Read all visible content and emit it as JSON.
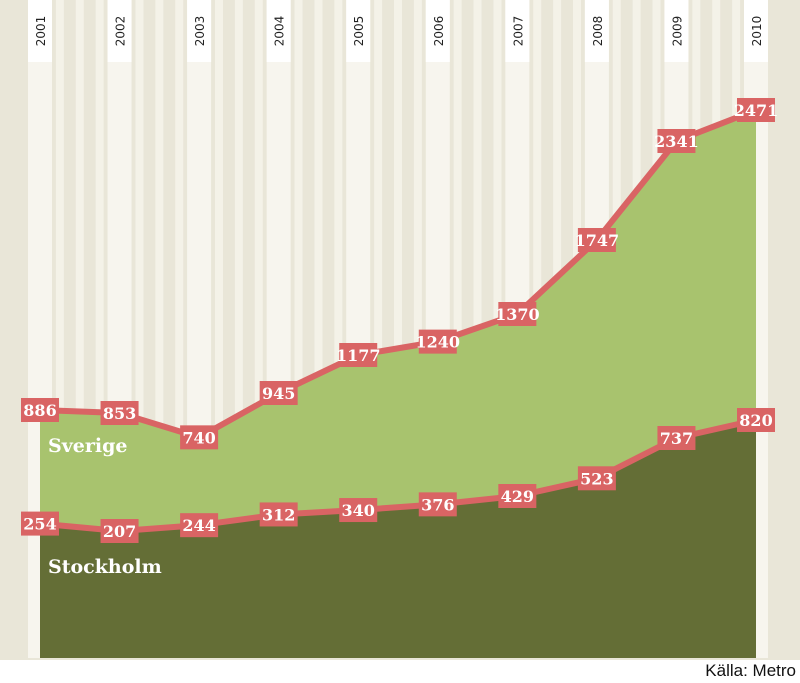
{
  "source": "Källa: Metro",
  "chart_data": {
    "type": "area",
    "categories": [
      "2001",
      "2002",
      "2003",
      "2004",
      "2005",
      "2006",
      "2007",
      "2008",
      "2009",
      "2010"
    ],
    "series": [
      {
        "name": "Sverige",
        "values": [
          886,
          853,
          740,
          945,
          1177,
          1240,
          1370,
          1747,
          2341,
          2471
        ]
      },
      {
        "name": "Stockholm",
        "values": [
          254,
          207,
          244,
          312,
          340,
          376,
          429,
          523,
          737,
          820
        ]
      }
    ],
    "colors": {
      "background": "#e9e6d8",
      "stripe": "#f7f5ee",
      "sverige_fill": "#a8c36e",
      "stockholm_fill": "#646e36",
      "line": "#d96464",
      "label_text": "#ffffff"
    }
  }
}
